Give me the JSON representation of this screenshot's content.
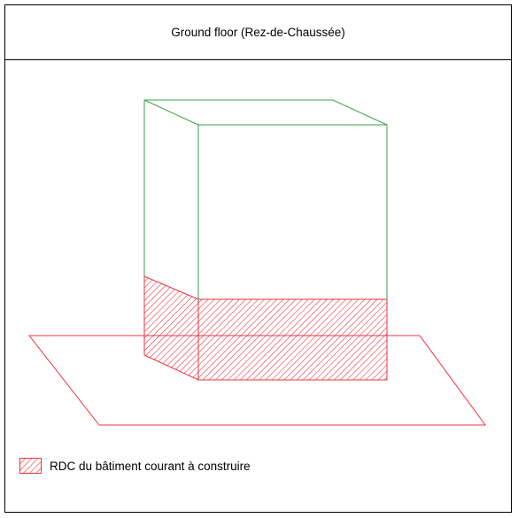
{
  "title": "Ground floor (Rez-de-Chaussée)",
  "legend": {
    "label": "RDC du bâtiment courant à construire"
  },
  "colors": {
    "building_outline": "#3aa04a",
    "ground_floor": "#e8363f",
    "frame": "#000000"
  }
}
